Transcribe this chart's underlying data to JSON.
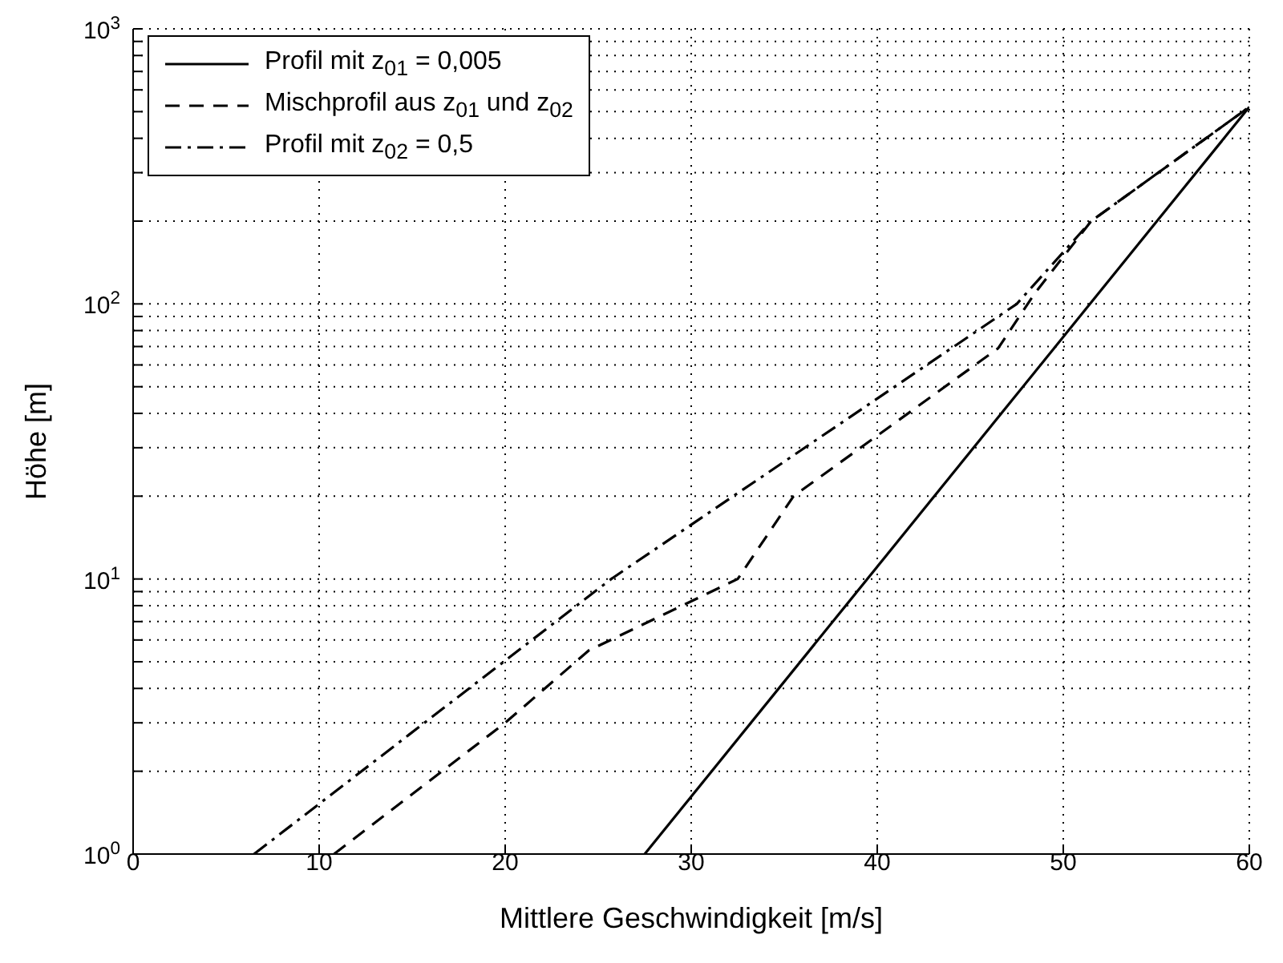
{
  "chart_data": {
    "type": "line",
    "xlabel": "Mittlere Geschwindigkeit [m/s]",
    "ylabel": "Höhe [m]",
    "series": [
      {
        "name": "Profil mit z$_{01}$ = 0,005",
        "color": "#000000",
        "line_style": "solid",
        "x": [
          27.5,
          60
        ],
        "values": [
          1,
          520
        ]
      },
      {
        "name": "Mischprofil aus z$_{01}$ und z$_{02}$",
        "color": "#000000",
        "line_style": "dashed",
        "x": [
          10.8,
          20,
          24.5,
          32.5,
          35.5,
          46.5,
          48.5,
          51.5,
          60
        ],
        "values": [
          1,
          3,
          5.5,
          10,
          20,
          69,
          110,
          200,
          520
        ]
      },
      {
        "name": "Profil mit z$_{02}$ = 0,5",
        "color": "#000000",
        "line_style": "dashdot",
        "x": [
          6.5,
          25.7,
          47.5,
          51.5,
          60
        ],
        "values": [
          1,
          10,
          100,
          200,
          520
        ]
      }
    ],
    "xlim": [
      0,
      60
    ],
    "xticks": [
      0,
      10,
      20,
      30,
      40,
      50,
      60
    ],
    "ylim": [
      1,
      1000
    ],
    "log": "y",
    "yticks": [
      {
        "value": 1,
        "label": "10$^{0}$"
      },
      {
        "value": 2,
        "label": null
      },
      {
        "value": 3,
        "label": null
      },
      {
        "value": 4,
        "label": null
      },
      {
        "value": 5,
        "label": null
      },
      {
        "value": 6,
        "label": null
      },
      {
        "value": 7,
        "label": null
      },
      {
        "value": 8,
        "label": null
      },
      {
        "value": 9,
        "label": null
      },
      {
        "value": 10,
        "label": "10$^{1}$"
      },
      {
        "value": 20,
        "label": null
      },
      {
        "value": 30,
        "label": null
      },
      {
        "value": 40,
        "label": null
      },
      {
        "value": 50,
        "label": null
      },
      {
        "value": 60,
        "label": null
      },
      {
        "value": 70,
        "label": null
      },
      {
        "value": 80,
        "label": null
      },
      {
        "value": 90,
        "label": null
      },
      {
        "value": 100,
        "label": "10$^{2}$"
      },
      {
        "value": 200,
        "label": null
      },
      {
        "value": 300,
        "label": null
      },
      {
        "value": 400,
        "label": null
      },
      {
        "value": 500,
        "label": null
      },
      {
        "value": 600,
        "label": null
      },
      {
        "value": 700,
        "label": null
      },
      {
        "value": 800,
        "label": null
      },
      {
        "value": 900,
        "label": null
      },
      {
        "value": 1000,
        "label": "10$^{3}$"
      }
    ],
    "grid": true,
    "legend": "top left",
    "marker": "none"
  }
}
